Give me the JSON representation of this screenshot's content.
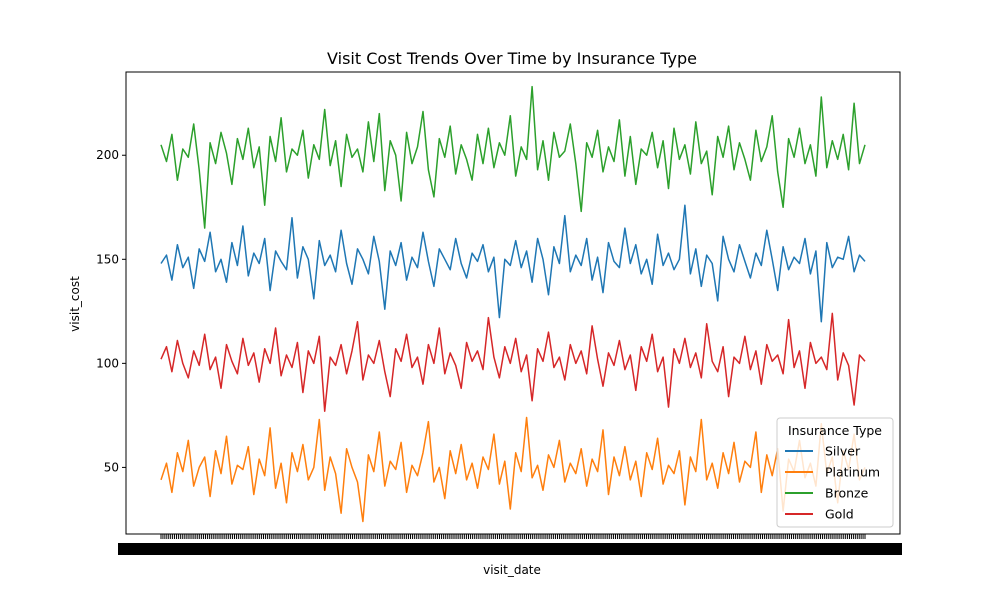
{
  "chart_data": {
    "type": "line",
    "title": "Visit Cost Trends Over Time by Insurance Type",
    "xlabel": "visit_date",
    "ylabel": "visit_cost",
    "ylim": [
      18,
      240
    ],
    "y_ticks": [
      50,
      100,
      150,
      200
    ],
    "y_tick_labels": [
      "50",
      "100",
      "150",
      "200"
    ],
    "x_tick_count": 365,
    "grid": false,
    "legend": {
      "title": "Insurance Type",
      "placement": "lower-right",
      "entries": [
        "Silver",
        "Platinum",
        "Bronze",
        "Gold"
      ]
    },
    "series": [
      {
        "name": "Silver",
        "color": "#1f77b4",
        "values": [
          148,
          152,
          140,
          157,
          146,
          151,
          136,
          155,
          149,
          163,
          144,
          150,
          139,
          158,
          147,
          166,
          142,
          153,
          148,
          160,
          135,
          154,
          149,
          145,
          170,
          141,
          156,
          150,
          131,
          159,
          147,
          152,
          144,
          164,
          148,
          138,
          155,
          150,
          143,
          161,
          149,
          126,
          154,
          147,
          158,
          140,
          151,
          146,
          163,
          149,
          137,
          155,
          150,
          145,
          160,
          148,
          141,
          153,
          149,
          157,
          144,
          151,
          122,
          150,
          147,
          159,
          146,
          154,
          139,
          160,
          150,
          133,
          156,
          148,
          171,
          144,
          152,
          147,
          160,
          140,
          151,
          134,
          158,
          149,
          146,
          165,
          148,
          157,
          143,
          150,
          138,
          162,
          147,
          153,
          145,
          150,
          176,
          143,
          155,
          137,
          152,
          148,
          130,
          161,
          150,
          144,
          157,
          149,
          141,
          153,
          147,
          164,
          150,
          135,
          156,
          145,
          151,
          148,
          160,
          143,
          154,
          120,
          158,
          146,
          151,
          150,
          161,
          144,
          152,
          149
        ]
      },
      {
        "name": "Platinum",
        "color": "#ff7f0e",
        "values": [
          44,
          52,
          38,
          57,
          48,
          63,
          41,
          50,
          55,
          36,
          58,
          47,
          65,
          42,
          51,
          49,
          60,
          37,
          54,
          46,
          69,
          40,
          52,
          33,
          57,
          48,
          61,
          44,
          50,
          73,
          39,
          55,
          47,
          28,
          59,
          50,
          43,
          24,
          56,
          48,
          67,
          41,
          53,
          49,
          62,
          38,
          51,
          46,
          57,
          72,
          43,
          50,
          35,
          58,
          47,
          61,
          44,
          52,
          40,
          55,
          49,
          66,
          42,
          53,
          30,
          57,
          48,
          74,
          45,
          51,
          39,
          56,
          50,
          63,
          43,
          52,
          47,
          59,
          41,
          54,
          48,
          68,
          37,
          55,
          46,
          60,
          44,
          53,
          36,
          57,
          49,
          64,
          42,
          51,
          47,
          58,
          32,
          55,
          48,
          73,
          44,
          52,
          40,
          57,
          47,
          62,
          43,
          53,
          50,
          67,
          38,
          56,
          46,
          59,
          29,
          54,
          48,
          63,
          45,
          52,
          41,
          71,
          47,
          55,
          33,
          58,
          49,
          66,
          44,
          50
        ]
      },
      {
        "name": "Bronze",
        "color": "#2ca02c",
        "values": [
          205,
          197,
          210,
          188,
          203,
          199,
          215,
          193,
          165,
          206,
          196,
          211,
          201,
          186,
          208,
          198,
          213,
          194,
          204,
          176,
          209,
          197,
          218,
          192,
          203,
          200,
          212,
          189,
          205,
          198,
          222,
          195,
          207,
          185,
          210,
          199,
          203,
          192,
          216,
          197,
          220,
          183,
          207,
          200,
          178,
          211,
          196,
          204,
          221,
          193,
          180,
          208,
          199,
          214,
          191,
          205,
          198,
          188,
          210,
          196,
          213,
          194,
          206,
          200,
          219,
          190,
          204,
          198,
          233,
          193,
          207,
          188,
          211,
          199,
          202,
          215,
          196,
          173,
          206,
          199,
          212,
          192,
          204,
          197,
          217,
          190,
          209,
          186,
          203,
          200,
          211,
          194,
          207,
          184,
          213,
          198,
          205,
          191,
          216,
          196,
          202,
          181,
          209,
          199,
          214,
          193,
          206,
          198,
          188,
          212,
          197,
          204,
          219,
          192,
          175,
          208,
          199,
          213,
          196,
          205,
          190,
          228,
          194,
          207,
          198,
          210,
          193,
          225,
          196,
          205
        ]
      },
      {
        "name": "Gold",
        "color": "#d62728",
        "values": [
          102,
          108,
          96,
          111,
          100,
          93,
          106,
          99,
          114,
          97,
          103,
          88,
          109,
          101,
          95,
          112,
          99,
          105,
          91,
          107,
          100,
          117,
          94,
          104,
          98,
          110,
          86,
          106,
          100,
          113,
          77,
          103,
          99,
          109,
          95,
          106,
          120,
          92,
          104,
          100,
          111,
          96,
          84,
          107,
          101,
          114,
          98,
          103,
          90,
          109,
          100,
          117,
          95,
          105,
          99,
          88,
          110,
          101,
          106,
          97,
          122,
          103,
          93,
          108,
          100,
          112,
          96,
          104,
          82,
          107,
          101,
          115,
          98,
          103,
          92,
          109,
          100,
          106,
          95,
          118,
          102,
          89,
          105,
          99,
          111,
          97,
          104,
          87,
          108,
          101,
          114,
          96,
          103,
          79,
          107,
          100,
          112,
          98,
          105,
          93,
          119,
          101,
          96,
          108,
          84,
          103,
          100,
          113,
          97,
          106,
          90,
          109,
          101,
          104,
          95,
          121,
          98,
          106,
          88,
          110,
          100,
          103,
          97,
          124,
          92,
          105,
          99,
          80,
          104,
          101
        ]
      }
    ]
  }
}
